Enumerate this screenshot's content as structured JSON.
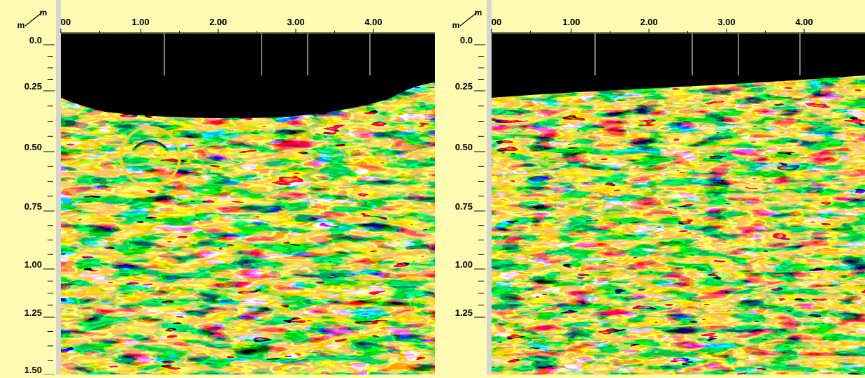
{
  "colors": {
    "background": "#fffbb3",
    "axis_panel": "#d7d5d0",
    "air_gap": "#000000",
    "palette": [
      "#000000",
      "#6a0000",
      "#c00000",
      "#ff1800",
      "#ff5a10",
      "#ffff20",
      "#6c8a30",
      "#00c000",
      "#00ffff",
      "#0000c0",
      "#ff40ff",
      "#ffffff"
    ],
    "highlight_ring": "#f5d12a"
  },
  "panels": [
    {
      "corner_unit_top": "m",
      "corner_unit_left": "m",
      "x_ticks": [
        "00",
        "1.00",
        "2.00",
        "3.00",
        "4.00"
      ],
      "y_ticks": [
        "0.0",
        "0.25",
        "0.50",
        "0.75",
        "1.00",
        "1.25",
        "1.50"
      ]
    },
    {
      "corner_unit_top": "m",
      "corner_unit_left": "m",
      "x_ticks": [
        "00",
        "1.00",
        "2.00",
        "3.00",
        "4.00"
      ],
      "y_ticks": [
        "0.0",
        "0.25",
        "0.50",
        "0.75",
        "1.00",
        "1.25"
      ]
    }
  ]
}
